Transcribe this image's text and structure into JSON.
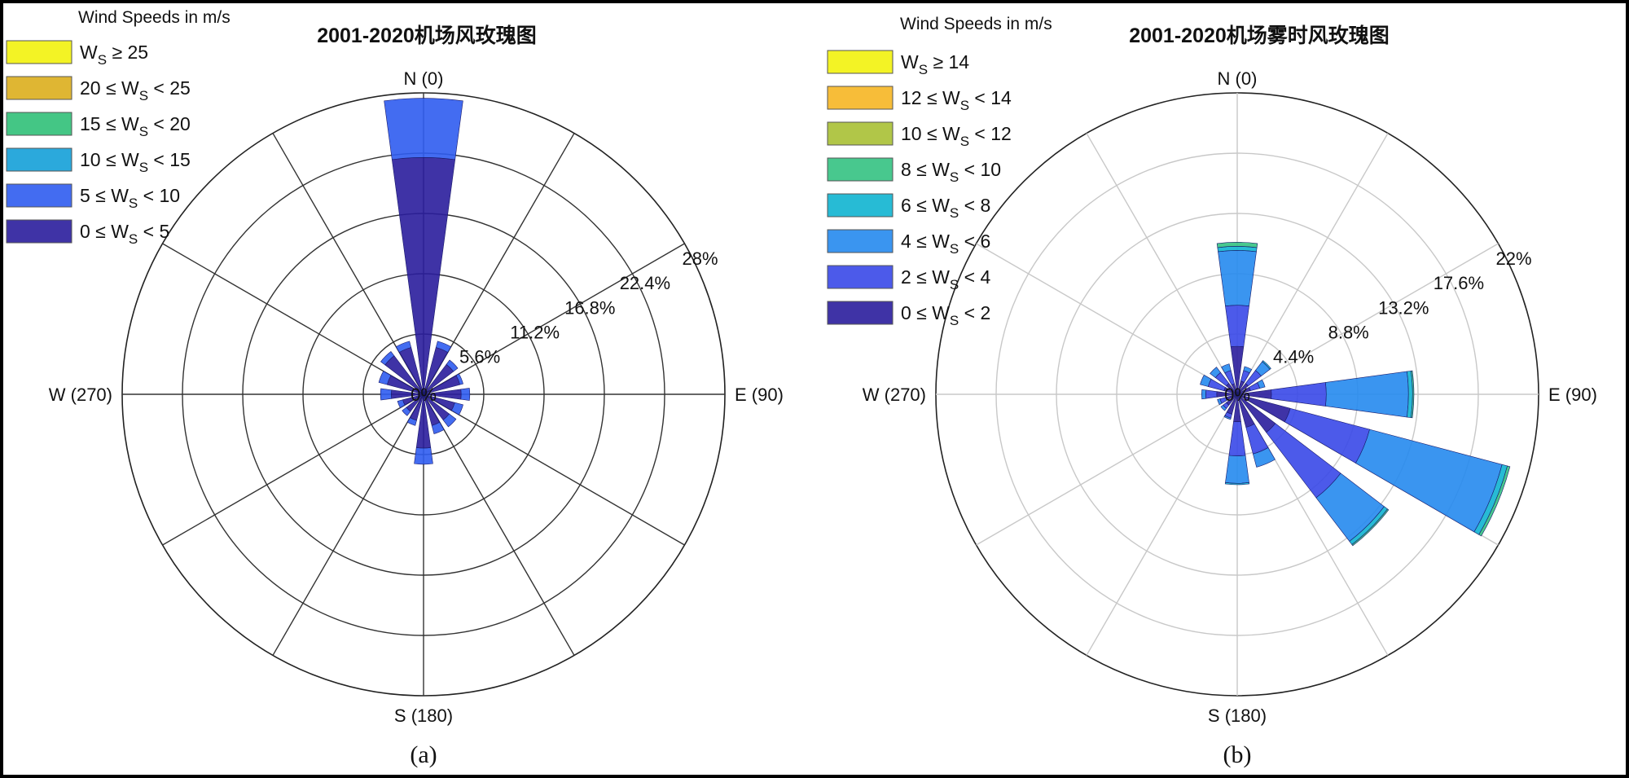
{
  "chart_data": [
    {
      "type": "polar-bar",
      "title": "2001-2020机场风玫瑰图",
      "caption": "(a)",
      "legend_title": "Wind Speeds in m/s",
      "legend_position": "top-left",
      "legend_entries": [
        {
          "lhs": "W",
          "sub": "S",
          "op": "≥",
          "rhs": "25",
          "color": "#f2f20d"
        },
        {
          "lhs": "20",
          "op": "≤",
          "w": "W",
          "sub": "S",
          "op2": "<",
          "rhs": "25",
          "color": "#dcae1d"
        },
        {
          "lhs": "15",
          "op": "≤",
          "w": "W",
          "sub": "S",
          "op2": "<",
          "rhs": "20",
          "color": "#30c078"
        },
        {
          "lhs": "10",
          "op": "≤",
          "w": "W",
          "sub": "S",
          "op2": "<",
          "rhs": "15",
          "color": "#14a0d8"
        },
        {
          "lhs": "5",
          "op": "≤",
          "w": "W",
          "sub": "S",
          "op2": "<",
          "rhs": "10",
          "color": "#2f5cf0"
        },
        {
          "lhs": "0",
          "op": "≤",
          "w": "W",
          "sub": "S",
          "op2": "<",
          "rhs": "5",
          "color": "#2a1d9c"
        }
      ],
      "directions": {
        "n": "N (0)",
        "e": "E (90)",
        "s": "S (180)",
        "w": "W (270)"
      },
      "center_label": "0%",
      "rlim": [
        0,
        28
      ],
      "ring_labels": [
        "5.6%",
        "11.2%",
        "16.8%",
        "22.4%",
        "28%"
      ],
      "grid_color": "#333333",
      "sector_count": 16,
      "series": [
        {
          "name": "0 ≤ WS < 5",
          "values": [
            22.0,
            4.5,
            3.5,
            3.5,
            3.5,
            3.0,
            3.0,
            3.0,
            5.0,
            2.5,
            2.0,
            2.0,
            3.0,
            3.5,
            4.5,
            4.5
          ]
        },
        {
          "name": "5 ≤ WS < 10",
          "values": [
            5.5,
            0.6,
            0.5,
            0.3,
            0.8,
            0.8,
            0.8,
            0.8,
            1.5,
            0.5,
            0.5,
            0.5,
            1.0,
            0.8,
            0.5,
            0.6
          ]
        }
      ]
    },
    {
      "type": "polar-bar",
      "title": "2001-2020机场雾时风玫瑰图",
      "caption": "(b)",
      "legend_title": "Wind Speeds in m/s",
      "legend_position": "top-left",
      "legend_entries": [
        {
          "lhs": "W",
          "sub": "S",
          "op": "≥",
          "rhs": "14",
          "color": "#f2f20d"
        },
        {
          "lhs": "12",
          "op": "≤",
          "w": "W",
          "sub": "S",
          "op2": "<",
          "rhs": "14",
          "color": "#f6b624"
        },
        {
          "lhs": "10",
          "op": "≤",
          "w": "W",
          "sub": "S",
          "op2": "<",
          "rhs": "12",
          "color": "#a9c034"
        },
        {
          "lhs": "8",
          "op": "≤",
          "w": "W",
          "sub": "S",
          "op2": "<",
          "rhs": "10",
          "color": "#34c282"
        },
        {
          "lhs": "6",
          "op": "≤",
          "w": "W",
          "sub": "S",
          "op2": "<",
          "rhs": "8",
          "color": "#10b4d0"
        },
        {
          "lhs": "4",
          "op": "≤",
          "w": "W",
          "sub": "S",
          "op2": "<",
          "rhs": "6",
          "color": "#2589ee"
        },
        {
          "lhs": "2",
          "op": "≤",
          "w": "W",
          "sub": "S",
          "op2": "<",
          "rhs": "4",
          "color": "#3848e8"
        },
        {
          "lhs": "0",
          "op": "≤",
          "w": "W",
          "sub": "S",
          "op2": "<",
          "rhs": "2",
          "color": "#2a1d9c"
        }
      ],
      "directions": {
        "n": "N (0)",
        "e": "E (90)",
        "s": "S (180)",
        "w": "W (270)"
      },
      "center_label": "0%",
      "rlim": [
        0,
        22
      ],
      "ring_labels": [
        "4.4%",
        "8.8%",
        "13.2%",
        "17.6%",
        "22%"
      ],
      "grid_color": "#c8c8c8",
      "sector_count": 16,
      "series": [
        {
          "name": "0 ≤ WS < 2",
          "values": [
            3.5,
            1.0,
            1.0,
            1.0,
            2.5,
            4.0,
            3.5,
            2.5,
            2.0,
            1.5,
            1.0,
            0.8,
            1.5,
            1.0,
            1.0,
            0.8
          ]
        },
        {
          "name": "2 ≤ WS < 4",
          "values": [
            3.0,
            0.8,
            1.2,
            0.7,
            4.0,
            6.0,
            6.0,
            2.0,
            2.5,
            0.3,
            0.3,
            0.5,
            0.8,
            1.2,
            1.0,
            1.0
          ]
        },
        {
          "name": "4 ≤ WS < 6",
          "values": [
            4.0,
            0.3,
            0.8,
            0.4,
            6.0,
            10.0,
            4.0,
            1.0,
            2.0,
            0.1,
            0.2,
            0.2,
            0.3,
            0.6,
            0.5,
            0.5
          ]
        },
        {
          "name": "6 ≤ WS < 8",
          "values": [
            0.3,
            0.0,
            0.1,
            0.0,
            0.3,
            0.4,
            0.3,
            0.0,
            0.1,
            0.0,
            0.0,
            0.0,
            0.0,
            0.0,
            0.0,
            0.0
          ]
        },
        {
          "name": "8 ≤ WS < 10",
          "values": [
            0.3,
            0.0,
            0.0,
            0.0,
            0.1,
            0.2,
            0.1,
            0.0,
            0.0,
            0.0,
            0.0,
            0.0,
            0.0,
            0.0,
            0.0,
            0.0
          ]
        }
      ]
    }
  ]
}
